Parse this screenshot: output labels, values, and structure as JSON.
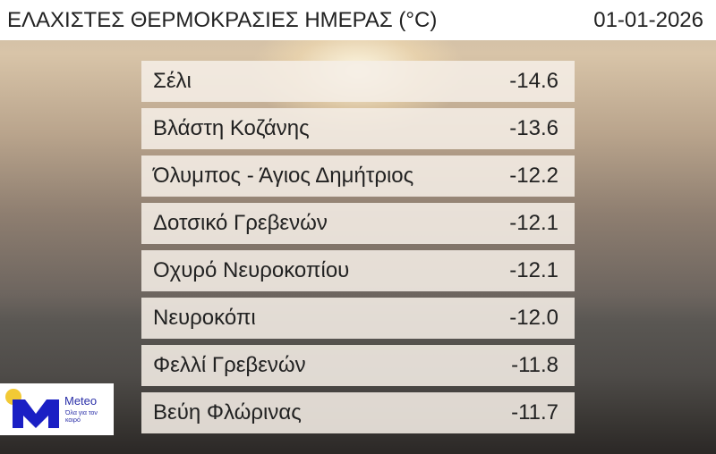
{
  "header": {
    "title": "ΕΛΑΧΙΣΤΕΣ ΘΕΡΜΟΚΡΑΣΙΕΣ ΗΜΕΡΑΣ (°C)",
    "date": "01-01-2026"
  },
  "rows": [
    {
      "name": "Σέλι",
      "value": "-14.6"
    },
    {
      "name": "Βλάστη Κοζάνης",
      "value": "-13.6"
    },
    {
      "name": "Όλυμπος - Άγιος Δημήτριος",
      "value": "-12.2"
    },
    {
      "name": "Δοτσικό Γρεβενών",
      "value": "-12.1"
    },
    {
      "name": "Οχυρό Νευροκοπίου",
      "value": "-12.1"
    },
    {
      "name": "Νευροκόπι",
      "value": "-12.0"
    },
    {
      "name": "Φελλί Γρεβενών",
      "value": "-11.8"
    },
    {
      "name": "Βεύη Φλώρινας",
      "value": "-11.7"
    }
  ],
  "logo": {
    "brand": "Meteo",
    "tagline": "Όλα για τον καιρό",
    "colors": {
      "blue": "#1a1fc4",
      "yellow": "#f2c935"
    }
  }
}
